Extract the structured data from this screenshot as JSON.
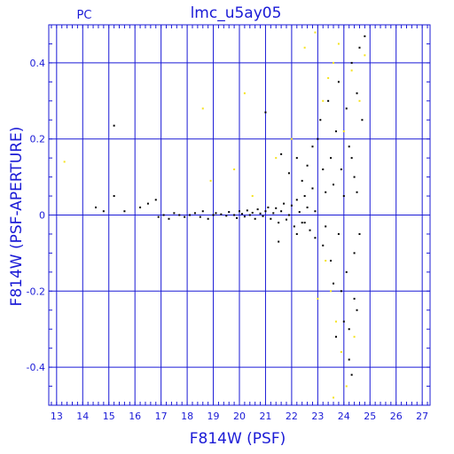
{
  "chart_data": {
    "type": "scatter",
    "title": "lmc_u5ay05",
    "corner_label": "PC",
    "xlabel": "F814W (PSF)",
    "ylabel": "F814W (PSF-APERTURE)",
    "xlim": [
      12.7,
      27.3
    ],
    "ylim": [
      -0.5,
      0.5
    ],
    "x_ticks": [
      13,
      14,
      15,
      16,
      17,
      18,
      19,
      20,
      21,
      22,
      23,
      24,
      25,
      26,
      27
    ],
    "y_ticks": [
      -0.4,
      -0.2,
      0,
      0.2,
      0.4
    ],
    "y_tick_labels": [
      "-0.4",
      "-0.2",
      "0",
      "0.2",
      "0.4"
    ],
    "grid": true,
    "axis_color": "#1a1ad6",
    "series": [
      {
        "color": "#000000",
        "points": [
          [
            14.5,
            0.02
          ],
          [
            14.8,
            0.01
          ],
          [
            15.2,
            0.235
          ],
          [
            15.2,
            0.05
          ],
          [
            15.6,
            0.01
          ],
          [
            16.2,
            0.02
          ],
          [
            16.5,
            0.03
          ],
          [
            16.8,
            0.04
          ],
          [
            16.9,
            -0.005
          ],
          [
            17.1,
            0.0
          ],
          [
            17.3,
            -0.01
          ],
          [
            17.5,
            0.005
          ],
          [
            17.7,
            0.0
          ],
          [
            17.9,
            -0.005
          ],
          [
            18.1,
            0.0
          ],
          [
            18.3,
            0.005
          ],
          [
            18.5,
            -0.005
          ],
          [
            18.6,
            0.01
          ],
          [
            18.8,
            -0.01
          ],
          [
            19.0,
            0.0
          ],
          [
            19.1,
            0.005
          ],
          [
            19.3,
            0.002
          ],
          [
            19.5,
            -0.002
          ],
          [
            19.6,
            0.008
          ],
          [
            19.8,
            0.0
          ],
          [
            19.9,
            -0.008
          ],
          [
            20.0,
            0.01
          ],
          [
            20.1,
            0.003
          ],
          [
            20.2,
            -0.004
          ],
          [
            20.3,
            0.012
          ],
          [
            20.4,
            0.0
          ],
          [
            20.5,
            0.006
          ],
          [
            20.6,
            -0.01
          ],
          [
            20.7,
            0.015
          ],
          [
            20.8,
            0.004
          ],
          [
            20.9,
            -0.003
          ],
          [
            21.0,
            0.01
          ],
          [
            21.1,
            0.02
          ],
          [
            21.2,
            -0.01
          ],
          [
            21.3,
            0.005
          ],
          [
            21.4,
            0.018
          ],
          [
            21.5,
            -0.02
          ],
          [
            21.6,
            0.01
          ],
          [
            21.7,
            0.03
          ],
          [
            21.8,
            -0.012
          ],
          [
            21.9,
            0.0
          ],
          [
            22.0,
            0.025
          ],
          [
            22.1,
            -0.03
          ],
          [
            22.2,
            0.04
          ],
          [
            22.3,
            0.008
          ],
          [
            22.4,
            -0.02
          ],
          [
            22.5,
            0.05
          ],
          [
            22.6,
            0.02
          ],
          [
            22.7,
            -0.04
          ],
          [
            22.8,
            0.07
          ],
          [
            22.9,
            0.01
          ],
          [
            21.0,
            0.27
          ],
          [
            21.6,
            0.16
          ],
          [
            21.9,
            0.11
          ],
          [
            22.2,
            0.15
          ],
          [
            22.4,
            0.09
          ],
          [
            22.6,
            0.13
          ],
          [
            22.8,
            0.18
          ],
          [
            23.0,
            0.2
          ],
          [
            23.1,
            0.25
          ],
          [
            23.2,
            0.12
          ],
          [
            23.3,
            0.06
          ],
          [
            23.4,
            0.3
          ],
          [
            23.5,
            0.15
          ],
          [
            23.6,
            0.08
          ],
          [
            23.7,
            0.22
          ],
          [
            23.8,
            0.35
          ],
          [
            23.9,
            0.12
          ],
          [
            24.0,
            0.05
          ],
          [
            24.1,
            0.28
          ],
          [
            24.2,
            0.18
          ],
          [
            24.3,
            0.4
          ],
          [
            24.4,
            0.1
          ],
          [
            24.5,
            0.32
          ],
          [
            24.6,
            0.44
          ],
          [
            24.7,
            0.25
          ],
          [
            24.8,
            0.47
          ],
          [
            24.5,
            0.06
          ],
          [
            24.3,
            0.15
          ],
          [
            23.8,
            -0.05
          ],
          [
            23.5,
            -0.12
          ],
          [
            23.2,
            -0.08
          ],
          [
            23.9,
            -0.2
          ],
          [
            24.1,
            -0.15
          ],
          [
            24.2,
            -0.3
          ],
          [
            24.4,
            -0.1
          ],
          [
            24.5,
            -0.25
          ],
          [
            24.6,
            -0.05
          ],
          [
            23.6,
            -0.18
          ],
          [
            23.3,
            -0.03
          ],
          [
            22.9,
            -0.06
          ],
          [
            22.5,
            -0.02
          ],
          [
            22.2,
            -0.05
          ],
          [
            21.5,
            -0.07
          ],
          [
            24.3,
            -0.42
          ],
          [
            24.2,
            -0.38
          ],
          [
            24.0,
            -0.28
          ],
          [
            23.7,
            -0.32
          ],
          [
            24.4,
            -0.22
          ]
        ]
      },
      {
        "color": "#f5e21a",
        "points": [
          [
            13.3,
            0.14
          ],
          [
            18.6,
            0.28
          ],
          [
            18.9,
            0.09
          ],
          [
            20.2,
            0.32
          ],
          [
            21.4,
            0.15
          ],
          [
            22.5,
            0.44
          ],
          [
            22.9,
            0.48
          ],
          [
            23.2,
            0.3
          ],
          [
            23.4,
            0.36
          ],
          [
            23.6,
            0.4
          ],
          [
            23.8,
            0.45
          ],
          [
            24.0,
            0.22
          ],
          [
            24.3,
            0.38
          ],
          [
            24.6,
            0.3
          ],
          [
            24.8,
            0.42
          ],
          [
            23.5,
            -0.2
          ],
          [
            23.7,
            -0.28
          ],
          [
            23.9,
            -0.36
          ],
          [
            24.1,
            -0.45
          ],
          [
            23.3,
            -0.12
          ],
          [
            23.6,
            -0.48
          ],
          [
            24.4,
            -0.32
          ],
          [
            23.0,
            -0.22
          ],
          [
            20.5,
            0.05
          ],
          [
            19.8,
            0.12
          ],
          [
            22.0,
            0.2
          ]
        ]
      }
    ]
  }
}
